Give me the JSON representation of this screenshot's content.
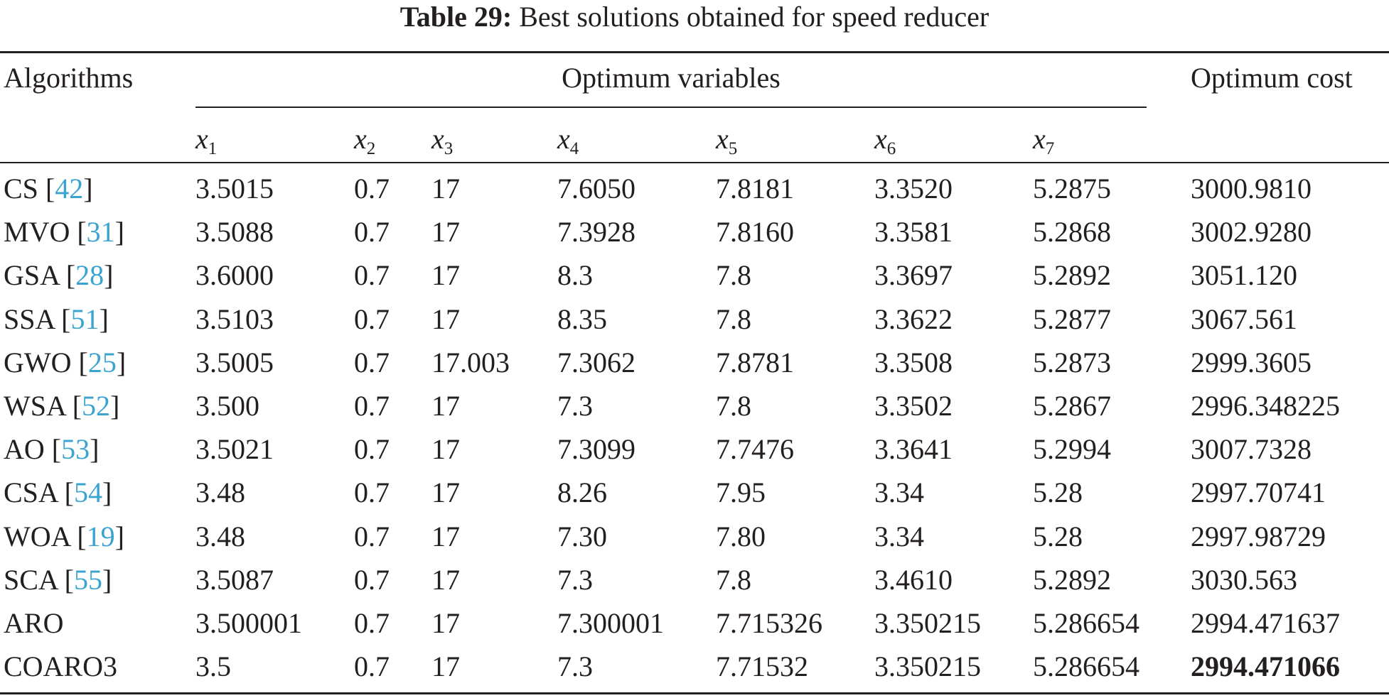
{
  "caption": {
    "label": "Table 29:",
    "text": "Best solutions obtained for speed reducer"
  },
  "header": {
    "algorithms": "Algorithms",
    "optimum_variables": "Optimum variables",
    "optimum_cost": "Optimum cost",
    "variables": [
      {
        "symbol": "x",
        "sub": "1"
      },
      {
        "symbol": "x",
        "sub": "2"
      },
      {
        "symbol": "x",
        "sub": "3"
      },
      {
        "symbol": "x",
        "sub": "4"
      },
      {
        "symbol": "x",
        "sub": "5"
      },
      {
        "symbol": "x",
        "sub": "6"
      },
      {
        "symbol": "x",
        "sub": "7"
      }
    ]
  },
  "rows": [
    {
      "name": "CS",
      "ref": "42",
      "values": [
        "3.5015",
        "0.7",
        "17",
        "7.6050",
        "7.8181",
        "3.3520",
        "5.2875"
      ],
      "cost": "3000.9810"
    },
    {
      "name": "MVO",
      "ref": "31",
      "values": [
        "3.5088",
        "0.7",
        "17",
        "7.3928",
        "7.8160",
        "3.3581",
        "5.2868"
      ],
      "cost": "3002.9280"
    },
    {
      "name": "GSA",
      "ref": "28",
      "values": [
        "3.6000",
        "0.7",
        "17",
        "8.3",
        "7.8",
        "3.3697",
        "5.2892"
      ],
      "cost": "3051.120"
    },
    {
      "name": "SSA",
      "ref": "51",
      "values": [
        "3.5103",
        "0.7",
        "17",
        "8.35",
        "7.8",
        "3.3622",
        "5.2877"
      ],
      "cost": "3067.561"
    },
    {
      "name": "GWO",
      "ref": "25",
      "values": [
        "3.5005",
        "0.7",
        "17.003",
        "7.3062",
        "7.8781",
        "3.3508",
        "5.2873"
      ],
      "cost": "2999.3605"
    },
    {
      "name": "WSA",
      "ref": "52",
      "values": [
        "3.500",
        "0.7",
        "17",
        "7.3",
        "7.8",
        "3.3502",
        "5.2867"
      ],
      "cost": "2996.348225"
    },
    {
      "name": "AO",
      "ref": "53",
      "values": [
        "3.5021",
        "0.7",
        "17",
        "7.3099",
        "7.7476",
        "3.3641",
        "5.2994"
      ],
      "cost": "3007.7328"
    },
    {
      "name": "CSA",
      "ref": "54",
      "values": [
        "3.48",
        "0.7",
        "17",
        "8.26",
        "7.95",
        "3.34",
        "5.28"
      ],
      "cost": "2997.70741"
    },
    {
      "name": "WOA",
      "ref": "19",
      "values": [
        "3.48",
        "0.7",
        "17",
        "7.30",
        "7.80",
        "3.34",
        "5.28"
      ],
      "cost": "2997.98729"
    },
    {
      "name": "SCA",
      "ref": "55",
      "values": [
        "3.5087",
        "0.7",
        "17",
        "7.3",
        "7.8",
        "3.4610",
        "5.2892"
      ],
      "cost": "3030.563"
    },
    {
      "name": "ARO",
      "ref": "",
      "values": [
        "3.500001",
        "0.7",
        "17",
        "7.300001",
        "7.715326",
        "3.350215",
        "5.286654"
      ],
      "cost": "2994.471637"
    },
    {
      "name": "COARO3",
      "ref": "",
      "values": [
        "3.5",
        "0.7",
        "17",
        "7.3",
        "7.71532",
        "3.350215",
        "5.286654"
      ],
      "cost": "2994.471066",
      "best": true
    }
  ]
}
